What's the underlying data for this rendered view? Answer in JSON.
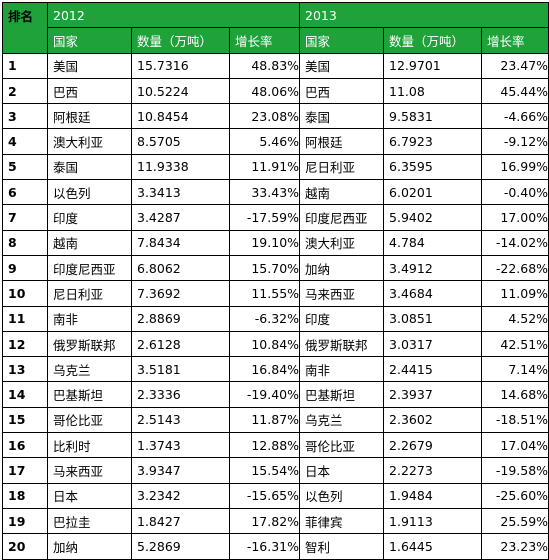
{
  "header": {
    "rank_label": "排名",
    "year_left": "2012",
    "year_right": "2013",
    "col_country": "国家",
    "col_quantity": "数量（万吨）",
    "col_growth": "增长率"
  },
  "rows": [
    {
      "rank": "1",
      "c2012": "美国",
      "q2012": "15.7316",
      "g2012": "48.83%",
      "c2013": "美国",
      "q2013": "12.9701",
      "g2013": "23.47%"
    },
    {
      "rank": "2",
      "c2012": "巴西",
      "q2012": "10.5224",
      "g2012": "48.06%",
      "c2013": "巴西",
      "q2013": "11.08",
      "g2013": "45.44%"
    },
    {
      "rank": "3",
      "c2012": "阿根廷",
      "q2012": "10.8454",
      "g2012": "23.08%",
      "c2013": "泰国",
      "q2013": "9.5831",
      "g2013": "-4.66%"
    },
    {
      "rank": "4",
      "c2012": "澳大利亚",
      "q2012": "8.5705",
      "g2012": "5.46%",
      "c2013": "阿根廷",
      "q2013": "6.7923",
      "g2013": "-9.12%"
    },
    {
      "rank": "5",
      "c2012": "泰国",
      "q2012": "11.9338",
      "g2012": "11.91%",
      "c2013": "尼日利亚",
      "q2013": "6.3595",
      "g2013": "16.99%"
    },
    {
      "rank": "6",
      "c2012": "以色列",
      "q2012": "3.3413",
      "g2012": "33.43%",
      "c2013": "越南",
      "q2013": "6.0201",
      "g2013": "-0.40%"
    },
    {
      "rank": "7",
      "c2012": "印度",
      "q2012": "3.4287",
      "g2012": "-17.59%",
      "c2013": "印度尼西亚",
      "q2013": "5.9402",
      "g2013": "17.00%"
    },
    {
      "rank": "8",
      "c2012": "越南",
      "q2012": "7.8434",
      "g2012": "19.10%",
      "c2013": "澳大利亚",
      "q2013": "4.784",
      "g2013": "-14.02%"
    },
    {
      "rank": "9",
      "c2012": "印度尼西亚",
      "q2012": "6.8062",
      "g2012": "15.70%",
      "c2013": "加纳",
      "q2013": "3.4912",
      "g2013": "-22.68%"
    },
    {
      "rank": "10",
      "c2012": "尼日利亚",
      "q2012": "7.3692",
      "g2012": "11.55%",
      "c2013": "马来西亚",
      "q2013": "3.4684",
      "g2013": "11.09%"
    },
    {
      "rank": "11",
      "c2012": "南非",
      "q2012": "2.8869",
      "g2012": "-6.32%",
      "c2013": "印度",
      "q2013": "3.0851",
      "g2013": "4.52%"
    },
    {
      "rank": "12",
      "c2012": "俄罗斯联邦",
      "q2012": "2.6128",
      "g2012": "10.84%",
      "c2013": "俄罗斯联邦",
      "q2013": "3.0317",
      "g2013": "42.51%"
    },
    {
      "rank": "13",
      "c2012": "乌克兰",
      "q2012": "3.5181",
      "g2012": "16.84%",
      "c2013": "南非",
      "q2013": "2.4415",
      "g2013": "7.14%"
    },
    {
      "rank": "14",
      "c2012": "巴基斯坦",
      "q2012": "2.3336",
      "g2012": "-19.40%",
      "c2013": "巴基斯坦",
      "q2013": "2.3937",
      "g2013": "14.68%"
    },
    {
      "rank": "15",
      "c2012": "哥伦比亚",
      "q2012": "2.5143",
      "g2012": "11.87%",
      "c2013": "乌克兰",
      "q2013": "2.3602",
      "g2013": "-18.51%"
    },
    {
      "rank": "16",
      "c2012": "比利时",
      "q2012": "1.3743",
      "g2012": "12.88%",
      "c2013": "哥伦比亚",
      "q2013": "2.2679",
      "g2013": "17.04%"
    },
    {
      "rank": "17",
      "c2012": "马来西亚",
      "q2012": "3.9347",
      "g2012": "15.54%",
      "c2013": "日本",
      "q2013": "2.2273",
      "g2013": "-19.58%"
    },
    {
      "rank": "18",
      "c2012": "日本",
      "q2012": "3.2342",
      "g2012": "-15.65%",
      "c2013": "以色列",
      "q2013": "1.9484",
      "g2013": "-25.60%"
    },
    {
      "rank": "19",
      "c2012": "巴拉圭",
      "q2012": "1.8427",
      "g2012": "17.82%",
      "c2013": "菲律宾",
      "q2013": "1.9113",
      "g2013": "25.59%"
    },
    {
      "rank": "20",
      "c2012": "加纳",
      "q2012": "5.2869",
      "g2012": "-16.31%",
      "c2013": "智利",
      "q2013": "1.6445",
      "g2013": "23.23%"
    }
  ],
  "colors": {
    "header_bg": "#1fa23a",
    "header_text": "#ffffff",
    "grid": "#000000"
  }
}
